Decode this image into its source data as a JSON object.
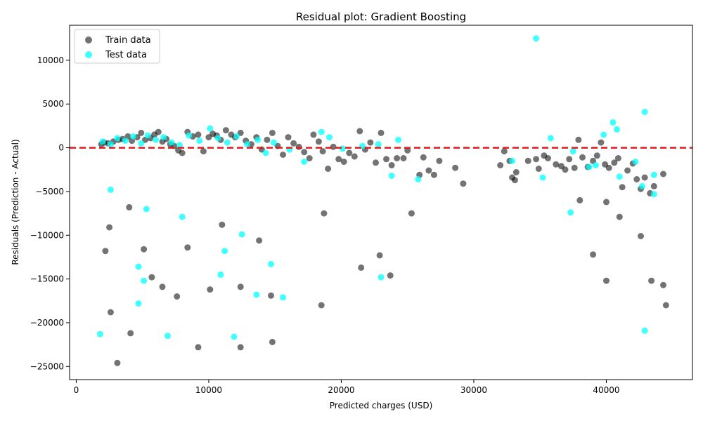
{
  "chart_data": {
    "type": "scatter",
    "title": "Residual plot: Gradient Boosting",
    "xlabel": "Predicted charges (USD)",
    "ylabel": "Residuals (Prediction - Actual)",
    "xlim": [
      -500,
      46500
    ],
    "ylim": [
      -26500,
      14000
    ],
    "xticks": [
      0,
      10000,
      20000,
      30000,
      40000
    ],
    "xtick_labels": [
      "0",
      "10000",
      "20000",
      "30000",
      "40000"
    ],
    "yticks": [
      -25000,
      -20000,
      -15000,
      -10000,
      -5000,
      0,
      5000,
      10000
    ],
    "ytick_labels": [
      "−25000",
      "−20000",
      "−15000",
      "−10000",
      "−5000",
      "0",
      "5000",
      "10000"
    ],
    "grid": false,
    "legend_position": "top-left",
    "reference_line": {
      "y": 0,
      "color": "#e31a1c",
      "style": "dashed"
    },
    "series": [
      {
        "name": "Train data",
        "color": "#000000",
        "opacity": 0.55,
        "points": [
          [
            1900,
            400
          ],
          [
            2100,
            600
          ],
          [
            2400,
            500
          ],
          [
            2800,
            700
          ],
          [
            3200,
            900
          ],
          [
            3500,
            1000
          ],
          [
            3900,
            1300
          ],
          [
            4200,
            800
          ],
          [
            4600,
            1200
          ],
          [
            4900,
            1700
          ],
          [
            5200,
            900
          ],
          [
            5600,
            1100
          ],
          [
            5900,
            1500
          ],
          [
            6200,
            1800
          ],
          [
            6500,
            700
          ],
          [
            6800,
            1000
          ],
          [
            7100,
            400
          ],
          [
            7400,
            200
          ],
          [
            7700,
            -300
          ],
          [
            8000,
            -600
          ],
          [
            8400,
            1800
          ],
          [
            8800,
            1300
          ],
          [
            9200,
            1500
          ],
          [
            9600,
            -400
          ],
          [
            10000,
            1200
          ],
          [
            10300,
            1600
          ],
          [
            10600,
            1400
          ],
          [
            10900,
            900
          ],
          [
            11300,
            2000
          ],
          [
            11700,
            1500
          ],
          [
            12000,
            1200
          ],
          [
            12400,
            1700
          ],
          [
            12800,
            800
          ],
          [
            13200,
            400
          ],
          [
            13600,
            1200
          ],
          [
            14000,
            -200
          ],
          [
            14400,
            900
          ],
          [
            14800,
            1700
          ],
          [
            15200,
            200
          ],
          [
            15600,
            -800
          ],
          [
            16000,
            1200
          ],
          [
            16400,
            500
          ],
          [
            16800,
            100
          ],
          [
            17200,
            -500
          ],
          [
            17600,
            -1200
          ],
          [
            17900,
            1500
          ],
          [
            18300,
            700
          ],
          [
            18600,
            -400
          ],
          [
            19000,
            -2400
          ],
          [
            19400,
            100
          ],
          [
            19800,
            -1300
          ],
          [
            20200,
            -1600
          ],
          [
            20600,
            -600
          ],
          [
            21000,
            -1000
          ],
          [
            21400,
            1900
          ],
          [
            21800,
            -200
          ],
          [
            22200,
            600
          ],
          [
            22600,
            -1700
          ],
          [
            23000,
            1700
          ],
          [
            23400,
            -1300
          ],
          [
            23800,
            -2000
          ],
          [
            24200,
            -1200
          ],
          [
            24700,
            -1200
          ],
          [
            25000,
            -300
          ],
          [
            25900,
            -3100
          ],
          [
            26200,
            -1100
          ],
          [
            26600,
            -2600
          ],
          [
            27000,
            -3100
          ],
          [
            27400,
            -1500
          ],
          [
            28600,
            -2300
          ],
          [
            29200,
            -4100
          ],
          [
            32000,
            -2000
          ],
          [
            32300,
            -400
          ],
          [
            32700,
            -1500
          ],
          [
            32900,
            -3400
          ],
          [
            33100,
            -3700
          ],
          [
            33200,
            -2800
          ],
          [
            34100,
            -1500
          ],
          [
            34700,
            -1300
          ],
          [
            34900,
            -2400
          ],
          [
            35300,
            -900
          ],
          [
            35600,
            -1200
          ],
          [
            36200,
            -1900
          ],
          [
            36600,
            -2100
          ],
          [
            36900,
            -2500
          ],
          [
            37200,
            -1300
          ],
          [
            37600,
            -2300
          ],
          [
            37900,
            900
          ],
          [
            38200,
            -1100
          ],
          [
            38600,
            -2200
          ],
          [
            39000,
            -1500
          ],
          [
            39300,
            -900
          ],
          [
            39600,
            600
          ],
          [
            39900,
            -1900
          ],
          [
            40200,
            -2300
          ],
          [
            40600,
            -1700
          ],
          [
            40900,
            -1200
          ],
          [
            41200,
            -4500
          ],
          [
            41600,
            -2600
          ],
          [
            42000,
            -1800
          ],
          [
            42300,
            -3600
          ],
          [
            42600,
            -4700
          ],
          [
            42900,
            -3400
          ],
          [
            43300,
            -5200
          ],
          [
            43600,
            -4400
          ],
          [
            44300,
            -3000
          ],
          [
            2500,
            -9100
          ],
          [
            2200,
            -11800
          ],
          [
            4000,
            -6800
          ],
          [
            5100,
            -11600
          ],
          [
            5700,
            -14800
          ],
          [
            4100,
            -21200
          ],
          [
            6500,
            -15900
          ],
          [
            7600,
            -17000
          ],
          [
            8400,
            -11400
          ],
          [
            9200,
            -22800
          ],
          [
            10100,
            -16200
          ],
          [
            11000,
            -8800
          ],
          [
            12400,
            -15900
          ],
          [
            12400,
            -22800
          ],
          [
            13800,
            -10600
          ],
          [
            14800,
            -22200
          ],
          [
            14700,
            -16900
          ],
          [
            18500,
            -18000
          ],
          [
            18700,
            -7500
          ],
          [
            21500,
            -13700
          ],
          [
            22900,
            -12300
          ],
          [
            23700,
            -14600
          ],
          [
            25300,
            -7500
          ],
          [
            38000,
            -6000
          ],
          [
            39000,
            -12200
          ],
          [
            40000,
            -15200
          ],
          [
            40000,
            -6200
          ],
          [
            41000,
            -7900
          ],
          [
            42600,
            -10100
          ],
          [
            43400,
            -15200
          ],
          [
            44300,
            -15700
          ],
          [
            44500,
            -18000
          ],
          [
            3100,
            -24600
          ],
          [
            2600,
            -18800
          ]
        ]
      },
      {
        "name": "Test data",
        "color": "#00ffff",
        "opacity": 0.75,
        "points": [
          [
            2000,
            700
          ],
          [
            2600,
            400
          ],
          [
            3100,
            1100
          ],
          [
            3700,
            800
          ],
          [
            4300,
            1300
          ],
          [
            4900,
            500
          ],
          [
            5400,
            1400
          ],
          [
            6000,
            900
          ],
          [
            6600,
            1200
          ],
          [
            7200,
            600
          ],
          [
            7800,
            300
          ],
          [
            8500,
            1400
          ],
          [
            9300,
            800
          ],
          [
            10100,
            2200
          ],
          [
            10700,
            1100
          ],
          [
            11400,
            600
          ],
          [
            12100,
            1300
          ],
          [
            12900,
            400
          ],
          [
            13700,
            900
          ],
          [
            14300,
            -600
          ],
          [
            14900,
            600
          ],
          [
            16100,
            -200
          ],
          [
            17200,
            -1600
          ],
          [
            18500,
            1800
          ],
          [
            19100,
            1200
          ],
          [
            20100,
            -100
          ],
          [
            21600,
            200
          ],
          [
            22800,
            400
          ],
          [
            23800,
            -3200
          ],
          [
            24300,
            900
          ],
          [
            25800,
            -3600
          ],
          [
            32900,
            -1500
          ],
          [
            34700,
            12500
          ],
          [
            35200,
            -3400
          ],
          [
            35800,
            1100
          ],
          [
            37300,
            -7400
          ],
          [
            37500,
            -400
          ],
          [
            38700,
            -2200
          ],
          [
            39200,
            -2000
          ],
          [
            39800,
            1500
          ],
          [
            40500,
            2900
          ],
          [
            40800,
            2100
          ],
          [
            41000,
            -3300
          ],
          [
            42200,
            -1600
          ],
          [
            42700,
            -4400
          ],
          [
            42900,
            4100
          ],
          [
            43600,
            -3100
          ],
          [
            2600,
            -4800
          ],
          [
            5300,
            -7000
          ],
          [
            8000,
            -7900
          ],
          [
            12500,
            -9900
          ],
          [
            11200,
            -11800
          ],
          [
            4700,
            -13600
          ],
          [
            5100,
            -15200
          ],
          [
            4700,
            -17800
          ],
          [
            1800,
            -21300
          ],
          [
            6900,
            -21500
          ],
          [
            10900,
            -14500
          ],
          [
            11900,
            -21600
          ],
          [
            13600,
            -16800
          ],
          [
            14700,
            -13300
          ],
          [
            15600,
            -17100
          ],
          [
            23000,
            -14800
          ],
          [
            42900,
            -20900
          ],
          [
            43600,
            -5300
          ]
        ]
      }
    ]
  }
}
